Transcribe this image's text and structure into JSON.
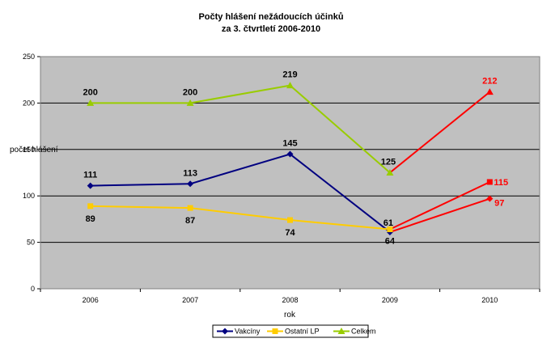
{
  "chart_data": {
    "type": "line",
    "title_lines": [
      "Počty hlášení nežádoucích účinků",
      "za 3. čtvrtletí 2006-2010"
    ],
    "xlabel": "rok",
    "ylabel": "počet hlášení",
    "categories": [
      "2006",
      "2007",
      "2008",
      "2009",
      "2010"
    ],
    "ylim": [
      0,
      250
    ],
    "yticks": [
      0,
      50,
      100,
      150,
      200,
      250
    ],
    "grid": true,
    "plot_background": "#c0c0c0",
    "highlight_color": "#ff0000",
    "legend_position": "bottom",
    "series": [
      {
        "name": "Vakcíny",
        "color": "#000080",
        "marker": "diamond",
        "values": [
          111,
          113,
          145,
          61,
          97
        ],
        "labels": [
          "111",
          "113",
          "145",
          "61",
          "97"
        ]
      },
      {
        "name": "Ostatní  LP",
        "color": "#ffcc00",
        "marker": "square",
        "values": [
          89,
          87,
          74,
          64,
          115
        ],
        "labels": [
          "89",
          "87",
          "74",
          "64",
          "115"
        ]
      },
      {
        "name": "Celkem",
        "color": "#99cc00",
        "marker": "triangle",
        "values": [
          200,
          200,
          219,
          125,
          212
        ],
        "labels": [
          "200",
          "200",
          "219",
          "125",
          "212"
        ]
      }
    ]
  }
}
